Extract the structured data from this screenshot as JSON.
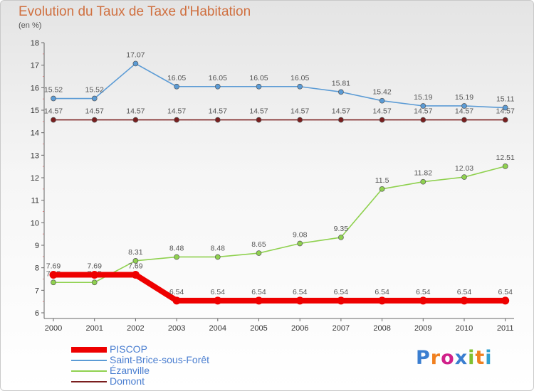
{
  "chart_data": {
    "type": "line",
    "title": "Evolution du Taux de Taxe d'Habitation",
    "subtitle": "(en %)",
    "xlabel": "",
    "ylabel": "",
    "x": [
      "2000",
      "2001",
      "2002",
      "2003",
      "2004",
      "2005",
      "2006",
      "2007",
      "2008",
      "2009",
      "2010",
      "2011"
    ],
    "ylim": [
      6,
      18
    ],
    "yticks": [
      6,
      7,
      8,
      9,
      10,
      11,
      12,
      13,
      14,
      15,
      16,
      17,
      18
    ],
    "grid": false,
    "legend_position": "bottom-left",
    "series": [
      {
        "name": "PISCOP",
        "color": "#ee0000",
        "values": [
          7.69,
          7.69,
          7.69,
          6.54,
          6.54,
          6.54,
          6.54,
          6.54,
          6.54,
          6.54,
          6.54,
          6.54
        ],
        "labels": [
          "7.69",
          "7.69",
          "7.69",
          "6.54",
          "6.54",
          "6.54",
          "6.54",
          "6.54",
          "6.54",
          "6.54",
          "6.54",
          "6.54"
        ]
      },
      {
        "name": "Saint-Brice-sous-Forêt",
        "color": "#5b9bd5",
        "values": [
          15.52,
          15.52,
          17.07,
          16.05,
          16.05,
          16.05,
          16.05,
          15.81,
          15.42,
          15.19,
          15.19,
          15.11
        ],
        "labels": [
          "15.52",
          "15.52",
          "17.07",
          "16.05",
          "16.05",
          "16.05",
          "16.05",
          "15.81",
          "15.42",
          "15.19",
          "15.19",
          "15.11"
        ]
      },
      {
        "name": "Ézanville",
        "color": "#8fd14f",
        "values": [
          7.35,
          7.35,
          8.31,
          8.48,
          8.48,
          8.65,
          9.08,
          9.35,
          11.5,
          11.82,
          12.03,
          12.51
        ],
        "labels": [
          "7.35",
          "7.35",
          "8.31",
          "8.48",
          "8.48",
          "8.65",
          "9.08",
          "9.35",
          "11.5",
          "11.82",
          "12.03",
          "12.51"
        ]
      },
      {
        "name": "Domont",
        "color": "#7a1e1e",
        "values": [
          14.57,
          14.57,
          14.57,
          14.57,
          14.57,
          14.57,
          14.57,
          14.57,
          14.57,
          14.57,
          14.57,
          14.57
        ],
        "labels": [
          "14.57",
          "14.57",
          "14.57",
          "14.57",
          "14.57",
          "14.57",
          "14.57",
          "14.57",
          "14.57",
          "14.57",
          "14.57",
          "14.57"
        ]
      }
    ]
  },
  "logo": {
    "text": "Proxiti",
    "colors": [
      "#3a7ed0",
      "#f08020",
      "#d0208a",
      "#3a7ed0",
      "#80c030",
      "#f08020",
      "#30a0d0"
    ]
  }
}
